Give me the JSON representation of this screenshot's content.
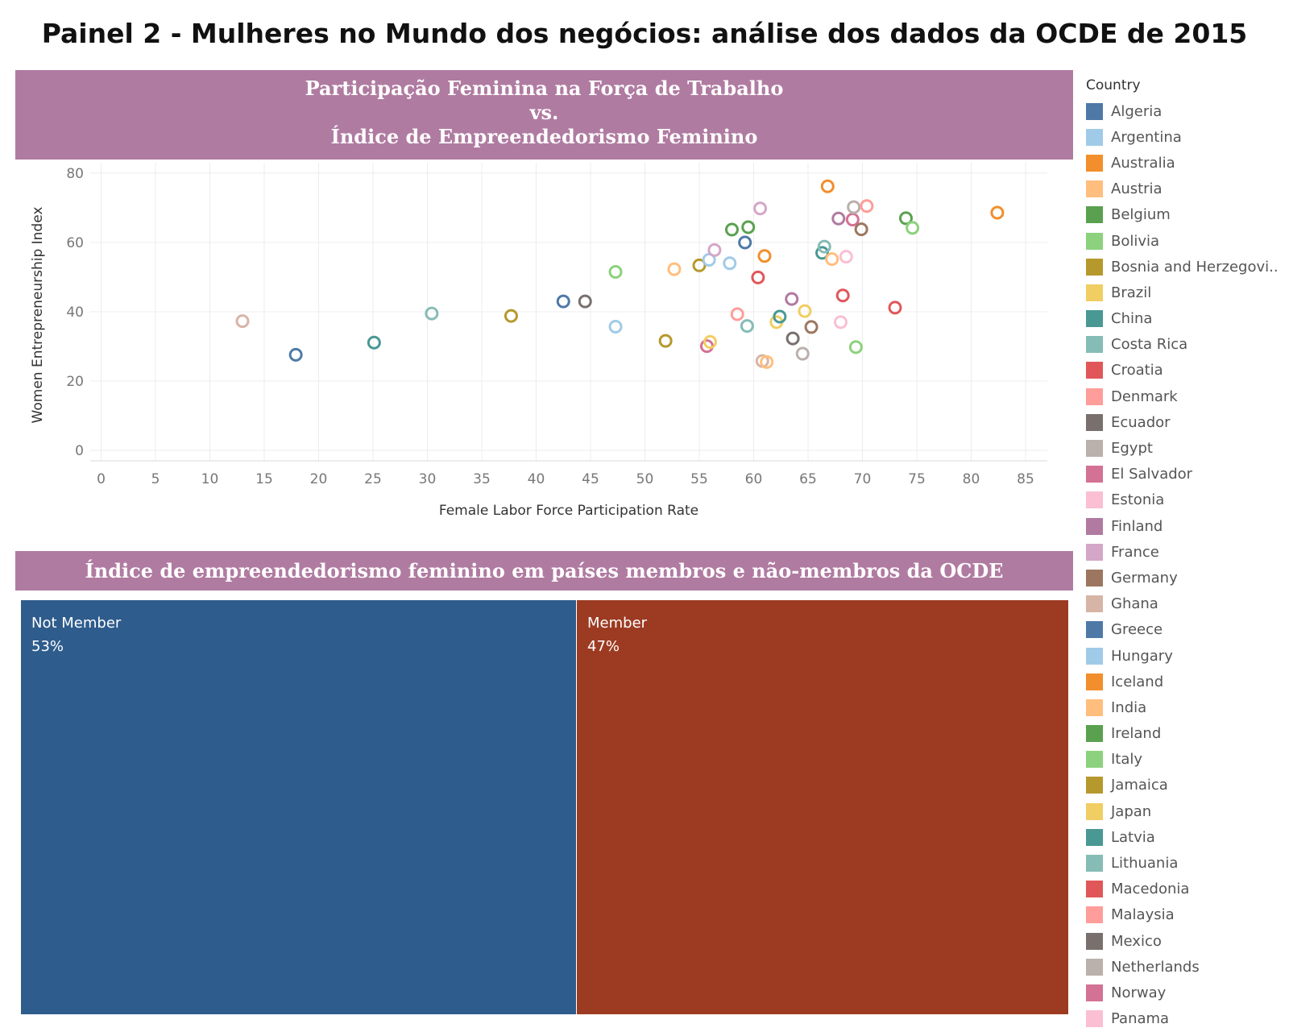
{
  "dashboard_title": "Painel 2 - Mulheres no Mundo dos negócios: análise dos dados da OCDE de 2015",
  "scatter_banner": {
    "line1": "Participação Feminina na Força de Trabalho",
    "line2": "vs.",
    "line3": "Índice de Empreendedorismo Feminino"
  },
  "treemap_banner": "Índice de empreendedorismo feminino em países membros e não-membros da OCDE",
  "colors": {
    "banner": "#b07ba1",
    "not_member": "#2e5c8c",
    "member": "#9c3b22"
  },
  "legend": {
    "title": "Country",
    "items": [
      {
        "label": "Algeria",
        "color": "#4e79a7"
      },
      {
        "label": "Argentina",
        "color": "#a0cbe8"
      },
      {
        "label": "Australia",
        "color": "#f28e2b"
      },
      {
        "label": "Austria",
        "color": "#ffbe7d"
      },
      {
        "label": "Belgium",
        "color": "#59a14f"
      },
      {
        "label": "Bolivia",
        "color": "#8cd17d"
      },
      {
        "label": "Bosnia and Herzegovi..",
        "color": "#b6992d"
      },
      {
        "label": "Brazil",
        "color": "#f1ce63"
      },
      {
        "label": "China",
        "color": "#499894"
      },
      {
        "label": "Costa Rica",
        "color": "#86bcb6"
      },
      {
        "label": "Croatia",
        "color": "#e15759"
      },
      {
        "label": "Denmark",
        "color": "#ff9d9a"
      },
      {
        "label": "Ecuador",
        "color": "#79706e"
      },
      {
        "label": "Egypt",
        "color": "#bab0ac"
      },
      {
        "label": "El Salvador",
        "color": "#d37295"
      },
      {
        "label": "Estonia",
        "color": "#fabfd2"
      },
      {
        "label": "Finland",
        "color": "#b07aa1"
      },
      {
        "label": "France",
        "color": "#d4a6c8"
      },
      {
        "label": "Germany",
        "color": "#9d7660"
      },
      {
        "label": "Ghana",
        "color": "#d7b5a6"
      },
      {
        "label": "Greece",
        "color": "#4e79a7"
      },
      {
        "label": "Hungary",
        "color": "#a0cbe8"
      },
      {
        "label": "Iceland",
        "color": "#f28e2b"
      },
      {
        "label": "India",
        "color": "#ffbe7d"
      },
      {
        "label": "Ireland",
        "color": "#59a14f"
      },
      {
        "label": "Italy",
        "color": "#8cd17d"
      },
      {
        "label": "Jamaica",
        "color": "#b6992d"
      },
      {
        "label": "Japan",
        "color": "#f1ce63"
      },
      {
        "label": "Latvia",
        "color": "#499894"
      },
      {
        "label": "Lithuania",
        "color": "#86bcb6"
      },
      {
        "label": "Macedonia",
        "color": "#e15759"
      },
      {
        "label": "Malaysia",
        "color": "#ff9d9a"
      },
      {
        "label": "Mexico",
        "color": "#79706e"
      },
      {
        "label": "Netherlands",
        "color": "#bab0ac"
      },
      {
        "label": "Norway",
        "color": "#d37295"
      },
      {
        "label": "Panama",
        "color": "#fabfd2"
      }
    ]
  },
  "chart_data": [
    {
      "type": "scatter",
      "xlabel": "Female Labor Force Participation Rate",
      "ylabel": "Women Entrepreneurship Index",
      "xlim": [
        -1,
        87
      ],
      "ylim": [
        -3,
        83
      ],
      "xticks": [
        0,
        5,
        10,
        15,
        20,
        25,
        30,
        35,
        40,
        45,
        50,
        55,
        60,
        65,
        70,
        75,
        80,
        85
      ],
      "yticks": [
        0,
        20,
        40,
        60,
        80
      ],
      "grid": true,
      "legend_position": "right",
      "points": [
        {
          "x": 13.0,
          "y": 37.3,
          "color": "#d7b5a6"
        },
        {
          "x": 17.9,
          "y": 27.6,
          "color": "#4e79a7"
        },
        {
          "x": 25.1,
          "y": 31.1,
          "color": "#499894"
        },
        {
          "x": 30.4,
          "y": 39.5,
          "color": "#86bcb6"
        },
        {
          "x": 37.7,
          "y": 38.8,
          "color": "#b6992d"
        },
        {
          "x": 42.5,
          "y": 43.0,
          "color": "#4e79a7"
        },
        {
          "x": 44.5,
          "y": 43.0,
          "color": "#79706e"
        },
        {
          "x": 47.3,
          "y": 35.7,
          "color": "#a0cbe8"
        },
        {
          "x": 47.3,
          "y": 51.5,
          "color": "#8cd17d"
        },
        {
          "x": 51.9,
          "y": 31.6,
          "color": "#b6992d"
        },
        {
          "x": 52.7,
          "y": 52.3,
          "color": "#ffbe7d"
        },
        {
          "x": 55.0,
          "y": 53.4,
          "color": "#b6992d"
        },
        {
          "x": 55.9,
          "y": 55.0,
          "color": "#a0cbe8"
        },
        {
          "x": 56.4,
          "y": 57.8,
          "color": "#d4a6c8"
        },
        {
          "x": 55.7,
          "y": 30.1,
          "color": "#d37295"
        },
        {
          "x": 56.0,
          "y": 31.3,
          "color": "#f1ce63"
        },
        {
          "x": 57.8,
          "y": 54.0,
          "color": "#a0cbe8"
        },
        {
          "x": 58.0,
          "y": 63.7,
          "color": "#59a14f"
        },
        {
          "x": 58.5,
          "y": 39.3,
          "color": "#ff9d9a"
        },
        {
          "x": 59.2,
          "y": 60.0,
          "color": "#4e79a7"
        },
        {
          "x": 59.5,
          "y": 64.4,
          "color": "#59a14f"
        },
        {
          "x": 59.4,
          "y": 35.9,
          "color": "#86bcb6"
        },
        {
          "x": 60.4,
          "y": 49.9,
          "color": "#e15759"
        },
        {
          "x": 60.6,
          "y": 69.8,
          "color": "#d4a6c8"
        },
        {
          "x": 61.0,
          "y": 56.1,
          "color": "#f28e2b"
        },
        {
          "x": 60.8,
          "y": 25.8,
          "color": "#d7b5a6"
        },
        {
          "x": 61.2,
          "y": 25.5,
          "color": "#ffbe7d"
        },
        {
          "x": 62.1,
          "y": 37.0,
          "color": "#f1ce63"
        },
        {
          "x": 62.4,
          "y": 38.6,
          "color": "#499894"
        },
        {
          "x": 63.5,
          "y": 43.7,
          "color": "#b07aa1"
        },
        {
          "x": 63.6,
          "y": 32.3,
          "color": "#79706e"
        },
        {
          "x": 64.5,
          "y": 27.9,
          "color": "#bab0ac"
        },
        {
          "x": 64.7,
          "y": 40.2,
          "color": "#f1ce63"
        },
        {
          "x": 65.3,
          "y": 35.6,
          "color": "#9d7660"
        },
        {
          "x": 66.3,
          "y": 57.0,
          "color": "#499894"
        },
        {
          "x": 66.5,
          "y": 58.8,
          "color": "#86bcb6"
        },
        {
          "x": 66.8,
          "y": 76.2,
          "color": "#f28e2b"
        },
        {
          "x": 67.2,
          "y": 55.2,
          "color": "#ffbe7d"
        },
        {
          "x": 67.8,
          "y": 66.9,
          "color": "#b07aa1"
        },
        {
          "x": 68.0,
          "y": 37.0,
          "color": "#fabfd2"
        },
        {
          "x": 68.2,
          "y": 44.7,
          "color": "#e15759"
        },
        {
          "x": 68.5,
          "y": 55.9,
          "color": "#fabfd2"
        },
        {
          "x": 69.1,
          "y": 66.6,
          "color": "#d37295"
        },
        {
          "x": 69.2,
          "y": 70.2,
          "color": "#bab0ac"
        },
        {
          "x": 69.4,
          "y": 29.8,
          "color": "#8cd17d"
        },
        {
          "x": 69.9,
          "y": 63.8,
          "color": "#9d7660"
        },
        {
          "x": 70.4,
          "y": 70.5,
          "color": "#ff9d9a"
        },
        {
          "x": 73.0,
          "y": 41.2,
          "color": "#e15759"
        },
        {
          "x": 74.0,
          "y": 67.0,
          "color": "#59a14f"
        },
        {
          "x": 74.6,
          "y": 64.2,
          "color": "#8cd17d"
        },
        {
          "x": 82.4,
          "y": 68.6,
          "color": "#f28e2b"
        }
      ]
    },
    {
      "type": "treemap",
      "categories": [
        "Not Member",
        "Member"
      ],
      "values": [
        53,
        47
      ],
      "value_labels": [
        "53%",
        "47%"
      ]
    }
  ]
}
